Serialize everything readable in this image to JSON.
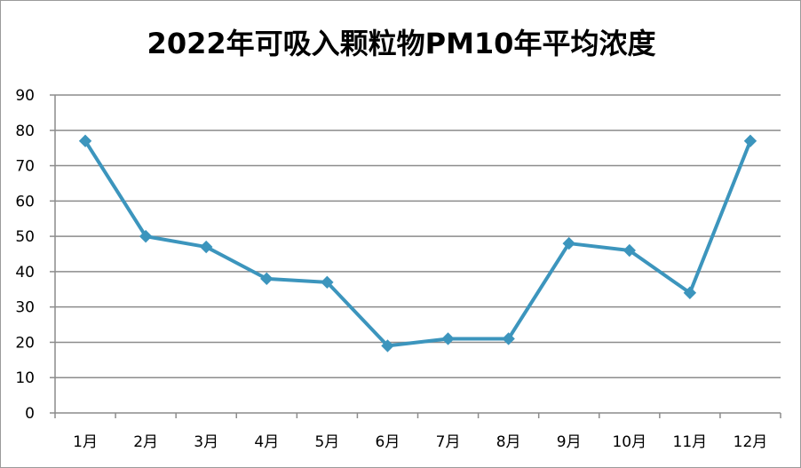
{
  "chart_data": {
    "type": "line",
    "title": "2022年可吸入颗粒物PM10年平均浓度",
    "xlabel": "",
    "ylabel": "",
    "categories": [
      "1月",
      "2月",
      "3月",
      "4月",
      "5月",
      "6月",
      "7月",
      "8月",
      "9月",
      "10月",
      "11月",
      "12月"
    ],
    "series": [
      {
        "values": [
          77,
          50,
          47,
          38,
          37,
          19,
          21,
          21,
          48,
          46,
          34,
          77
        ]
      }
    ],
    "ylim": [
      0,
      90
    ],
    "yticks": [
      "0",
      "10",
      "20",
      "30",
      "40",
      "50",
      "60",
      "70",
      "80",
      "90"
    ],
    "grid": true,
    "legend": "none",
    "marker": "diamond",
    "line_color": "#3c95bd",
    "grid_color": "#8c8c8c"
  }
}
